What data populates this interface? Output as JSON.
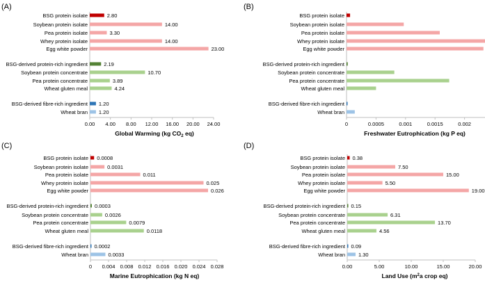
{
  "colors": {
    "isolate_highlight": "#c00000",
    "isolate": "#f4a6a6",
    "concentrate_highlight": "#548235",
    "concentrate": "#a9d18e",
    "fibre_highlight": "#2e75b6",
    "fibre": "#9dc3e6",
    "axis": "#bfbfbf",
    "text": "#000000"
  },
  "chart_data": [
    {
      "type": "bar",
      "orientation": "horizontal",
      "panel_label": "(A)",
      "xlabel_main": "Global Warming (kg CO",
      "xlabel_sub": "2",
      "xlabel_end": " eq)",
      "xlim": [
        0,
        24
      ],
      "ticks": [
        "0.00",
        "4.00",
        "8.00",
        "12.00",
        "16.00",
        "20.00",
        "24.00"
      ],
      "show_value_labels": true,
      "categories": [
        "BSG protein isolate",
        "Soybean protein isolate",
        "Pea protein isolate",
        "Whey protein isolate",
        "Egg white powder",
        "BSG-derived protein-rich ingredient",
        "Soybean protein concentrate",
        "Pea protein concentrate",
        "Wheat gluten meal",
        "BSG-derived fibre-rich ingredient",
        "Wheat bran"
      ],
      "values": [
        2.8,
        14.0,
        3.3,
        14.0,
        23.0,
        2.19,
        10.7,
        3.89,
        4.24,
        1.2,
        1.2
      ],
      "value_labels": [
        "2.80",
        "14.00",
        "3.30",
        "14.00",
        "23.00",
        "2.19",
        "10.70",
        "3.89",
        "4.24",
        "1.20",
        "1.20"
      ]
    },
    {
      "type": "bar",
      "orientation": "horizontal",
      "panel_label": "(B)",
      "xlabel_main": "Freshwater Eutrophication  (kg P eq)",
      "xlabel_sub": "",
      "xlabel_end": "",
      "xlim": [
        0,
        0.0025
      ],
      "ticks": [
        "0",
        "0.0005",
        "0.001",
        "0.0015",
        "0.002",
        "0.0025"
      ],
      "show_value_labels": false,
      "categories": [
        "BSG protein isolate",
        "Soybean protein isolate",
        "Pea protein isolate",
        "Whey protein isolate",
        "Egg white powder",
        "BSG-derived protein-rich ingredient",
        "Soybean protein concentrate",
        "Pea protein concentrate",
        "Wheat gluten meal",
        "BSG-derived fibre-rich ingredient",
        "Wheat bran"
      ],
      "values": [
        6e-05,
        0.00097,
        0.00158,
        0.0024,
        0.00232,
        2e-05,
        0.00081,
        0.00174,
        0.0005,
        1e-05,
        0.00014
      ],
      "value_labels": []
    },
    {
      "type": "bar",
      "orientation": "horizontal",
      "panel_label": "(C)",
      "xlabel_main": "Marine Eutrophication  (kg N eq)",
      "xlabel_sub": "",
      "xlabel_end": "",
      "xlim": [
        0,
        0.028
      ],
      "ticks": [
        "0",
        "0.004",
        "0.008",
        "0.012",
        "0.016",
        "0.020",
        "0.024",
        "0.028"
      ],
      "show_value_labels": true,
      "categories": [
        "BSG protein isolate",
        "Soybean protein isolate",
        "Pea protein isolate",
        "Whey protein isolate",
        "Egg white powder",
        "BSG-derived protein-rich ingredient",
        "Soybean protein concentrate",
        "Pea protein concentrate",
        "Wheat gluten meal",
        "BSG-derived fibre-rich ingredient",
        "Wheat bran"
      ],
      "values": [
        0.0008,
        0.0031,
        0.011,
        0.025,
        0.026,
        0.0003,
        0.0026,
        0.0079,
        0.0118,
        0.0002,
        0.0033
      ],
      "value_labels": [
        "0.0008",
        "0.0031",
        "0.011",
        "0.025",
        "0.026",
        "0.0003",
        "0.0026",
        "0.0079",
        "0.0118",
        "0.0002",
        "0.0033"
      ]
    },
    {
      "type": "bar",
      "orientation": "horizontal",
      "panel_label": "(D)",
      "xlabel_main": "Land Use  (m",
      "xlabel_sub": "2",
      "xlabel_end": "a  crop eq)",
      "xlabel_sup": true,
      "xlim": [
        0,
        20
      ],
      "ticks": [
        "0.00",
        "5.00",
        "10.00",
        "15.00",
        "20.00"
      ],
      "show_value_labels": true,
      "categories": [
        "BSG protein isolate",
        "Soybean protein isolate",
        "Pea protein isolate",
        "Whey protein isolate",
        "Egg white powder",
        "BSG-derived protein-rich ingredient",
        "Soybean protein concentrate",
        "Pea protein concentrate",
        "Wheat gluten meal",
        "BSG-derived fibre-rich ingredient",
        "Wheat bran"
      ],
      "values": [
        0.38,
        7.5,
        15.0,
        5.5,
        19.0,
        0.15,
        6.31,
        13.7,
        4.56,
        0.09,
        1.3
      ],
      "value_labels": [
        "0.38",
        "7.50",
        "15.00",
        "5.50",
        "19.00",
        "0.15",
        "6.31",
        "13.70",
        "4.56",
        "0.09",
        "1.30"
      ]
    }
  ]
}
